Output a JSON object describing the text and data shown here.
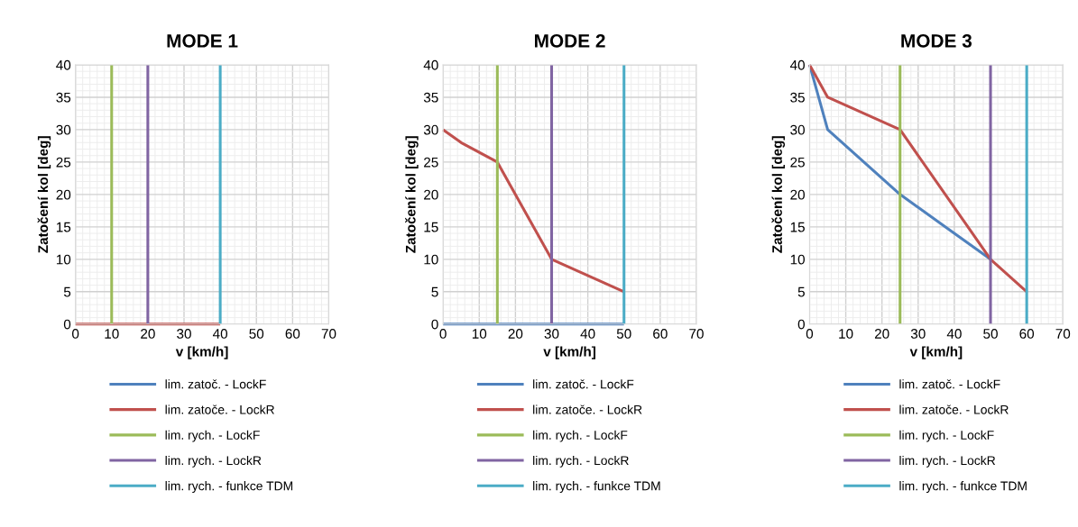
{
  "chart_data": [
    {
      "type": "line",
      "title": "MODE 1",
      "xlabel": "v [km/h]",
      "ylabel": "Zatočení kol [deg]",
      "xlim": [
        0,
        70
      ],
      "ylim": [
        0,
        40
      ],
      "xticks": [
        0,
        10,
        20,
        30,
        40,
        50,
        60,
        70
      ],
      "yticks": [
        0,
        5,
        10,
        15,
        20,
        25,
        30,
        35,
        40
      ],
      "grid": true,
      "legend": "bottom",
      "marker": "none",
      "line_style": "solid",
      "series": [
        {
          "name": "lim. zatoč. - LockF",
          "color": "#4f81bd"
        },
        {
          "name": "lim. zatoče. - LockR",
          "color": "#c0504d",
          "x": [
            0,
            40
          ],
          "values": [
            0,
            0
          ]
        },
        {
          "name": "lim. rych. - LockF",
          "color": "#9bbb59",
          "x": [
            10,
            10
          ],
          "values": [
            0,
            40
          ]
        },
        {
          "name": "lim. rych. - LockR",
          "color": "#8064a2",
          "x": [
            20,
            20
          ],
          "values": [
            0,
            40
          ]
        },
        {
          "name": "lim. rych. - funkce TDM",
          "color": "#4bacc6",
          "x": [
            40,
            40
          ],
          "values": [
            0,
            40
          ]
        }
      ]
    },
    {
      "type": "line",
      "title": "MODE 2",
      "xlabel": "v [km/h]",
      "ylabel": "Zatočení kol [deg]",
      "xlim": [
        0,
        70
      ],
      "ylim": [
        0,
        40
      ],
      "xticks": [
        0,
        10,
        20,
        30,
        40,
        50,
        60,
        70
      ],
      "yticks": [
        0,
        5,
        10,
        15,
        20,
        25,
        30,
        35,
        40
      ],
      "grid": true,
      "legend": "bottom",
      "marker": "none",
      "line_style": "solid",
      "series": [
        {
          "name": "lim. zatoč. - LockF",
          "color": "#4f81bd",
          "x": [
            0,
            50
          ],
          "values": [
            0,
            0
          ]
        },
        {
          "name": "lim. zatoče. - LockR",
          "color": "#c0504d",
          "x": [
            0,
            5,
            15,
            30,
            50
          ],
          "values": [
            30,
            28,
            25,
            10,
            5
          ]
        },
        {
          "name": "lim. rych. - LockF",
          "color": "#9bbb59",
          "x": [
            15,
            15
          ],
          "values": [
            0,
            40
          ]
        },
        {
          "name": "lim. rych. - LockR",
          "color": "#8064a2",
          "x": [
            30,
            30
          ],
          "values": [
            0,
            40
          ]
        },
        {
          "name": "lim. rych. - funkce TDM",
          "color": "#4bacc6",
          "x": [
            50,
            50
          ],
          "values": [
            0,
            40
          ]
        }
      ]
    },
    {
      "type": "line",
      "title": "MODE 3",
      "xlabel": "v [km/h]",
      "ylabel": "Zatočení kol [deg]",
      "xlim": [
        0,
        70
      ],
      "ylim": [
        0,
        40
      ],
      "xticks": [
        0,
        10,
        20,
        30,
        40,
        50,
        60,
        70
      ],
      "yticks": [
        0,
        5,
        10,
        15,
        20,
        25,
        30,
        35,
        40
      ],
      "grid": true,
      "legend": "bottom",
      "marker": "none",
      "line_style": "solid",
      "series": [
        {
          "name": "lim. zatoč. - LockF",
          "color": "#4f81bd",
          "x": [
            0,
            5,
            25,
            50
          ],
          "values": [
            40,
            30,
            20,
            10
          ]
        },
        {
          "name": "lim. zatoče. - LockR",
          "color": "#c0504d",
          "x": [
            0,
            5,
            25,
            50,
            60
          ],
          "values": [
            40,
            35,
            30,
            10,
            5
          ]
        },
        {
          "name": "lim. rych. - LockF",
          "color": "#9bbb59",
          "x": [
            25,
            25
          ],
          "values": [
            0,
            40
          ]
        },
        {
          "name": "lim. rych. - LockR",
          "color": "#8064a2",
          "x": [
            50,
            50
          ],
          "values": [
            0,
            40
          ]
        },
        {
          "name": "lim. rych. - funkce TDM",
          "color": "#4bacc6",
          "x": [
            60,
            60
          ],
          "values": [
            0,
            40
          ]
        }
      ]
    }
  ]
}
